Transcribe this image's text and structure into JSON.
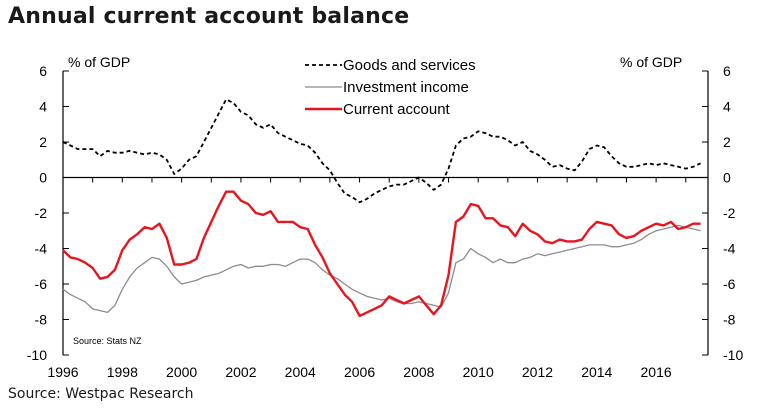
{
  "title": "Annual current account balance",
  "footer_source": "Source: Westpac Research",
  "chart_data": {
    "type": "line",
    "title": "Annual current account balance",
    "ylabel_left": "% of GDP",
    "ylabel_right": "% of GDP",
    "note": "Source: Stats NZ",
    "ylim": [
      -10,
      6
    ],
    "yticks": [
      6,
      4,
      2,
      0,
      -2,
      -4,
      -6,
      -8,
      -10
    ],
    "xlim": [
      1996,
      2017.75
    ],
    "xticks": [
      1996,
      1998,
      2000,
      2002,
      2004,
      2006,
      2008,
      2010,
      2012,
      2014,
      2016
    ],
    "legend_position": "top-center",
    "grid": false,
    "series": [
      {
        "name": "Goods and services",
        "color": "#000000",
        "style": "dashed",
        "points": [
          [
            1996,
            2.0
          ],
          [
            1996.25,
            1.8
          ],
          [
            1996.5,
            1.6
          ],
          [
            1996.75,
            1.6
          ],
          [
            1997,
            1.6
          ],
          [
            1997.25,
            1.2
          ],
          [
            1997.5,
            1.5
          ],
          [
            1997.75,
            1.4
          ],
          [
            1998,
            1.4
          ],
          [
            1998.25,
            1.5
          ],
          [
            1998.5,
            1.4
          ],
          [
            1998.75,
            1.3
          ],
          [
            1999,
            1.4
          ],
          [
            1999.25,
            1.3
          ],
          [
            1999.5,
            1.0
          ],
          [
            1999.75,
            0.2
          ],
          [
            2000,
            0.5
          ],
          [
            2000.25,
            1.0
          ],
          [
            2000.5,
            1.2
          ],
          [
            2000.75,
            2.0
          ],
          [
            2001,
            2.8
          ],
          [
            2001.25,
            3.6
          ],
          [
            2001.5,
            4.4
          ],
          [
            2001.75,
            4.2
          ],
          [
            2002,
            3.7
          ],
          [
            2002.25,
            3.5
          ],
          [
            2002.5,
            3.0
          ],
          [
            2002.75,
            2.8
          ],
          [
            2003,
            3.0
          ],
          [
            2003.25,
            2.5
          ],
          [
            2003.5,
            2.3
          ],
          [
            2003.75,
            2.1
          ],
          [
            2004,
            1.9
          ],
          [
            2004.25,
            1.8
          ],
          [
            2004.5,
            1.4
          ],
          [
            2004.75,
            0.8
          ],
          [
            2005,
            0.4
          ],
          [
            2005.25,
            -0.3
          ],
          [
            2005.5,
            -0.9
          ],
          [
            2005.75,
            -1.1
          ],
          [
            2006,
            -1.4
          ],
          [
            2006.25,
            -1.2
          ],
          [
            2006.5,
            -0.9
          ],
          [
            2006.75,
            -0.7
          ],
          [
            2007,
            -0.5
          ],
          [
            2007.25,
            -0.4
          ],
          [
            2007.5,
            -0.4
          ],
          [
            2007.75,
            -0.2
          ],
          [
            2008,
            0.0
          ],
          [
            2008.25,
            -0.3
          ],
          [
            2008.5,
            -0.7
          ],
          [
            2008.75,
            -0.4
          ],
          [
            2009,
            0.5
          ],
          [
            2009.25,
            1.8
          ],
          [
            2009.5,
            2.2
          ],
          [
            2009.75,
            2.3
          ],
          [
            2010,
            2.6
          ],
          [
            2010.25,
            2.5
          ],
          [
            2010.5,
            2.3
          ],
          [
            2010.75,
            2.3
          ],
          [
            2011,
            2.1
          ],
          [
            2011.25,
            1.8
          ],
          [
            2011.5,
            2.0
          ],
          [
            2011.75,
            1.5
          ],
          [
            2012,
            1.3
          ],
          [
            2012.25,
            1.0
          ],
          [
            2012.5,
            0.6
          ],
          [
            2012.75,
            0.7
          ],
          [
            2013,
            0.5
          ],
          [
            2013.25,
            0.4
          ],
          [
            2013.5,
            0.9
          ],
          [
            2013.75,
            1.6
          ],
          [
            2014,
            1.8
          ],
          [
            2014.25,
            1.7
          ],
          [
            2014.5,
            1.2
          ],
          [
            2014.75,
            0.8
          ],
          [
            2015,
            0.6
          ],
          [
            2015.25,
            0.6
          ],
          [
            2015.5,
            0.7
          ],
          [
            2015.75,
            0.8
          ],
          [
            2016,
            0.7
          ],
          [
            2016.25,
            0.8
          ],
          [
            2016.5,
            0.7
          ],
          [
            2016.75,
            0.6
          ],
          [
            2017,
            0.5
          ],
          [
            2017.25,
            0.6
          ],
          [
            2017.5,
            0.8
          ]
        ]
      },
      {
        "name": "Investment income",
        "color": "#8c8c8c",
        "style": "solid",
        "points": [
          [
            1996,
            -6.3
          ],
          [
            1996.25,
            -6.6
          ],
          [
            1996.5,
            -6.8
          ],
          [
            1996.75,
            -7.0
          ],
          [
            1997,
            -7.4
          ],
          [
            1997.25,
            -7.5
          ],
          [
            1997.5,
            -7.6
          ],
          [
            1997.75,
            -7.2
          ],
          [
            1998,
            -6.3
          ],
          [
            1998.25,
            -5.6
          ],
          [
            1998.5,
            -5.1
          ],
          [
            1998.75,
            -4.8
          ],
          [
            1999,
            -4.5
          ],
          [
            1999.25,
            -4.6
          ],
          [
            1999.5,
            -5.0
          ],
          [
            1999.75,
            -5.6
          ],
          [
            2000,
            -6.0
          ],
          [
            2000.25,
            -5.9
          ],
          [
            2000.5,
            -5.8
          ],
          [
            2000.75,
            -5.6
          ],
          [
            2001,
            -5.5
          ],
          [
            2001.25,
            -5.4
          ],
          [
            2001.5,
            -5.2
          ],
          [
            2001.75,
            -5.0
          ],
          [
            2002,
            -4.9
          ],
          [
            2002.25,
            -5.1
          ],
          [
            2002.5,
            -5.0
          ],
          [
            2002.75,
            -5.0
          ],
          [
            2003,
            -4.9
          ],
          [
            2003.25,
            -4.9
          ],
          [
            2003.5,
            -5.0
          ],
          [
            2003.75,
            -4.8
          ],
          [
            2004,
            -4.6
          ],
          [
            2004.25,
            -4.6
          ],
          [
            2004.5,
            -4.8
          ],
          [
            2004.75,
            -5.2
          ],
          [
            2005,
            -5.5
          ],
          [
            2005.25,
            -5.7
          ],
          [
            2005.5,
            -6.0
          ],
          [
            2005.75,
            -6.3
          ],
          [
            2006,
            -6.5
          ],
          [
            2006.25,
            -6.7
          ],
          [
            2006.5,
            -6.8
          ],
          [
            2006.75,
            -6.9
          ],
          [
            2007,
            -6.8
          ],
          [
            2007.25,
            -7.0
          ],
          [
            2007.5,
            -7.1
          ],
          [
            2007.75,
            -7.1
          ],
          [
            2008,
            -7.0
          ],
          [
            2008.25,
            -7.1
          ],
          [
            2008.5,
            -7.2
          ],
          [
            2008.75,
            -7.3
          ],
          [
            2009,
            -6.5
          ],
          [
            2009.25,
            -4.8
          ],
          [
            2009.5,
            -4.6
          ],
          [
            2009.75,
            -4.0
          ],
          [
            2010,
            -4.3
          ],
          [
            2010.25,
            -4.5
          ],
          [
            2010.5,
            -4.8
          ],
          [
            2010.75,
            -4.6
          ],
          [
            2011,
            -4.8
          ],
          [
            2011.25,
            -4.8
          ],
          [
            2011.5,
            -4.6
          ],
          [
            2011.75,
            -4.5
          ],
          [
            2012,
            -4.3
          ],
          [
            2012.25,
            -4.4
          ],
          [
            2012.5,
            -4.3
          ],
          [
            2012.75,
            -4.2
          ],
          [
            2013,
            -4.1
          ],
          [
            2013.25,
            -4.0
          ],
          [
            2013.5,
            -3.9
          ],
          [
            2013.75,
            -3.8
          ],
          [
            2014,
            -3.8
          ],
          [
            2014.25,
            -3.8
          ],
          [
            2014.5,
            -3.9
          ],
          [
            2014.75,
            -3.9
          ],
          [
            2015,
            -3.8
          ],
          [
            2015.25,
            -3.7
          ],
          [
            2015.5,
            -3.5
          ],
          [
            2015.75,
            -3.2
          ],
          [
            2016,
            -3.0
          ],
          [
            2016.25,
            -2.9
          ],
          [
            2016.5,
            -2.8
          ],
          [
            2016.75,
            -2.7
          ],
          [
            2017,
            -2.8
          ],
          [
            2017.25,
            -2.9
          ],
          [
            2017.5,
            -3.0
          ]
        ]
      },
      {
        "name": "Current account",
        "color": "#e8141e",
        "style": "solid",
        "points": [
          [
            1996,
            -4.1
          ],
          [
            1996.25,
            -4.5
          ],
          [
            1996.5,
            -4.6
          ],
          [
            1996.75,
            -4.8
          ],
          [
            1997,
            -5.1
          ],
          [
            1997.25,
            -5.7
          ],
          [
            1997.5,
            -5.6
          ],
          [
            1997.75,
            -5.2
          ],
          [
            1998,
            -4.1
          ],
          [
            1998.25,
            -3.5
          ],
          [
            1998.5,
            -3.2
          ],
          [
            1998.75,
            -2.8
          ],
          [
            1999,
            -2.9
          ],
          [
            1999.25,
            -2.6
          ],
          [
            1999.5,
            -3.4
          ],
          [
            1999.75,
            -4.9
          ],
          [
            2000,
            -4.9
          ],
          [
            2000.25,
            -4.8
          ],
          [
            2000.5,
            -4.6
          ],
          [
            2000.75,
            -3.4
          ],
          [
            2001,
            -2.5
          ],
          [
            2001.25,
            -1.6
          ],
          [
            2001.5,
            -0.8
          ],
          [
            2001.75,
            -0.8
          ],
          [
            2002,
            -1.3
          ],
          [
            2002.25,
            -1.5
          ],
          [
            2002.5,
            -2.0
          ],
          [
            2002.75,
            -2.1
          ],
          [
            2003,
            -1.9
          ],
          [
            2003.25,
            -2.5
          ],
          [
            2003.5,
            -2.5
          ],
          [
            2003.75,
            -2.5
          ],
          [
            2004,
            -2.8
          ],
          [
            2004.25,
            -2.9
          ],
          [
            2004.5,
            -3.8
          ],
          [
            2004.75,
            -4.5
          ],
          [
            2005,
            -5.4
          ],
          [
            2005.25,
            -6.0
          ],
          [
            2005.5,
            -6.6
          ],
          [
            2005.75,
            -7.0
          ],
          [
            2006,
            -7.8
          ],
          [
            2006.25,
            -7.6
          ],
          [
            2006.5,
            -7.4
          ],
          [
            2006.75,
            -7.2
          ],
          [
            2007,
            -6.7
          ],
          [
            2007.25,
            -6.9
          ],
          [
            2007.5,
            -7.1
          ],
          [
            2007.75,
            -6.9
          ],
          [
            2008,
            -6.7
          ],
          [
            2008.25,
            -7.2
          ],
          [
            2008.5,
            -7.7
          ],
          [
            2008.75,
            -7.2
          ],
          [
            2009,
            -5.5
          ],
          [
            2009.25,
            -2.5
          ],
          [
            2009.5,
            -2.2
          ],
          [
            2009.75,
            -1.5
          ],
          [
            2010,
            -1.6
          ],
          [
            2010.25,
            -2.3
          ],
          [
            2010.5,
            -2.3
          ],
          [
            2010.75,
            -2.7
          ],
          [
            2011,
            -2.8
          ],
          [
            2011.25,
            -3.3
          ],
          [
            2011.5,
            -2.6
          ],
          [
            2011.75,
            -3.0
          ],
          [
            2012,
            -3.2
          ],
          [
            2012.25,
            -3.6
          ],
          [
            2012.5,
            -3.7
          ],
          [
            2012.75,
            -3.5
          ],
          [
            2013,
            -3.6
          ],
          [
            2013.25,
            -3.6
          ],
          [
            2013.5,
            -3.5
          ],
          [
            2013.75,
            -2.9
          ],
          [
            2014,
            -2.5
          ],
          [
            2014.25,
            -2.6
          ],
          [
            2014.5,
            -2.7
          ],
          [
            2014.75,
            -3.2
          ],
          [
            2015,
            -3.4
          ],
          [
            2015.25,
            -3.3
          ],
          [
            2015.5,
            -3.0
          ],
          [
            2015.75,
            -2.8
          ],
          [
            2016,
            -2.6
          ],
          [
            2016.25,
            -2.7
          ],
          [
            2016.5,
            -2.5
          ],
          [
            2016.75,
            -2.9
          ],
          [
            2017,
            -2.8
          ],
          [
            2017.25,
            -2.6
          ],
          [
            2017.5,
            -2.6
          ]
        ]
      }
    ]
  }
}
